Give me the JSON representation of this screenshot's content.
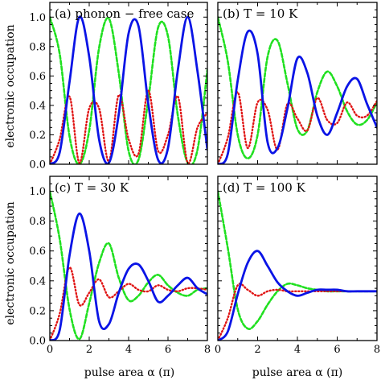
{
  "chart_data": {
    "type": "line",
    "layout": "2x2 grid of subplots with shared axes",
    "xlabel": "pulse area α (π)",
    "ylabel": "electronic occupation",
    "xlim": [
      0,
      8
    ],
    "ylim": [
      0,
      1.1
    ],
    "xticks": [
      0,
      2,
      4,
      6,
      8
    ],
    "yticks": [
      0.0,
      0.2,
      0.4,
      0.6,
      0.8,
      1.0
    ],
    "ytick_labels": [
      "0.0",
      "0.2",
      "0.4",
      "0.6",
      "0.8",
      "1.0"
    ],
    "grid": false,
    "series_styles": [
      {
        "color": "#0a14e6",
        "style": "solid",
        "width": 2.8
      },
      {
        "color": "#20e020",
        "style": "dashed",
        "width": 2.6
      },
      {
        "color": "#e01414",
        "style": "dotted",
        "width": 2.4
      }
    ],
    "panels": [
      {
        "title": "(a) phonon − free case",
        "series": [
          {
            "x": [
              0,
              0.5,
              1.0,
              1.5,
              2.0,
              2.5,
              3.0,
              3.5,
              4.0,
              4.5,
              5.0,
              5.5,
              6.0,
              6.5,
              7.0,
              7.5,
              8.0
            ],
            "y": [
              0.0,
              0.08,
              0.56,
              1.0,
              0.73,
              0.17,
              0.01,
              0.34,
              0.89,
              0.94,
              0.41,
              0.03,
              0.11,
              0.64,
              1.0,
              0.63,
              0.1
            ]
          },
          {
            "x": [
              0,
              0.5,
              1.0,
              1.5,
              2.0,
              2.5,
              3.0,
              3.5,
              4.0,
              4.5,
              5.0,
              5.5,
              6.0,
              6.5,
              7.0,
              7.5,
              8.0
            ],
            "y": [
              1.0,
              0.75,
              0.19,
              0.0,
              0.23,
              0.79,
              0.99,
              0.62,
              0.09,
              0.03,
              0.44,
              0.93,
              0.87,
              0.33,
              0.01,
              0.1,
              0.64
            ]
          },
          {
            "x": [
              0,
              0.5,
              1.0,
              1.5,
              2.0,
              2.5,
              3.0,
              3.5,
              4.0,
              4.5,
              5.0,
              5.5,
              6.0,
              6.5,
              7.0,
              7.5,
              8.0
            ],
            "y": [
              0.0,
              0.17,
              0.46,
              0.01,
              0.38,
              0.38,
              0.02,
              0.47,
              0.17,
              0.07,
              0.5,
              0.09,
              0.2,
              0.46,
              0.01,
              0.25,
              0.35
            ]
          }
        ]
      },
      {
        "title": "(b) T = 10 K",
        "series": [
          {
            "x": [
              0,
              0.5,
              1.0,
              1.5,
              2.0,
              2.5,
              3.0,
              3.5,
              4.0,
              4.5,
              5.0,
              5.5,
              6.0,
              6.5,
              7.0,
              7.5,
              8.0
            ],
            "y": [
              0.0,
              0.07,
              0.57,
              0.9,
              0.75,
              0.15,
              0.11,
              0.38,
              0.72,
              0.62,
              0.33,
              0.2,
              0.35,
              0.53,
              0.58,
              0.41,
              0.25
            ]
          },
          {
            "x": [
              0,
              0.5,
              1.0,
              1.5,
              2.0,
              2.5,
              3.0,
              3.5,
              4.0,
              4.5,
              5.0,
              5.5,
              6.0,
              6.5,
              7.0,
              7.5,
              8.0
            ],
            "y": [
              1.0,
              0.7,
              0.2,
              0.04,
              0.2,
              0.73,
              0.84,
              0.55,
              0.24,
              0.23,
              0.49,
              0.63,
              0.53,
              0.36,
              0.27,
              0.3,
              0.42
            ]
          },
          {
            "x": [
              0,
              0.5,
              1.0,
              1.5,
              2.0,
              2.5,
              3.0,
              3.5,
              4.0,
              4.5,
              5.0,
              5.5,
              6.0,
              6.5,
              7.0,
              7.5,
              8.0
            ],
            "y": [
              0.0,
              0.18,
              0.49,
              0.11,
              0.42,
              0.37,
              0.1,
              0.41,
              0.31,
              0.23,
              0.45,
              0.3,
              0.28,
              0.42,
              0.33,
              0.33,
              0.43
            ]
          }
        ]
      },
      {
        "title": "(c) T = 30 K",
        "series": [
          {
            "x": [
              0,
              0.5,
              1.0,
              1.5,
              2.0,
              2.5,
              3.0,
              3.5,
              4.0,
              4.5,
              5.0,
              5.5,
              6.0,
              6.5,
              7.0,
              7.5,
              8.0
            ],
            "y": [
              0.0,
              0.07,
              0.57,
              0.85,
              0.6,
              0.13,
              0.11,
              0.32,
              0.48,
              0.51,
              0.4,
              0.26,
              0.3,
              0.37,
              0.42,
              0.35,
              0.31
            ]
          },
          {
            "x": [
              0,
              0.5,
              1.0,
              1.5,
              2.0,
              2.5,
              3.0,
              3.5,
              4.0,
              4.5,
              5.0,
              5.5,
              6.0,
              6.5,
              7.0,
              7.5,
              8.0
            ],
            "y": [
              1.0,
              0.68,
              0.21,
              0.01,
              0.25,
              0.52,
              0.65,
              0.42,
              0.27,
              0.3,
              0.39,
              0.44,
              0.37,
              0.32,
              0.3,
              0.34,
              0.35
            ]
          },
          {
            "x": [
              0,
              0.5,
              1.0,
              1.5,
              2.0,
              2.5,
              3.0,
              3.5,
              4.0,
              4.5,
              5.0,
              5.5,
              6.0,
              6.5,
              7.0,
              7.5,
              8.0
            ],
            "y": [
              0.0,
              0.18,
              0.49,
              0.24,
              0.32,
              0.41,
              0.29,
              0.33,
              0.38,
              0.34,
              0.33,
              0.37,
              0.34,
              0.33,
              0.35,
              0.35,
              0.34
            ]
          }
        ]
      },
      {
        "title": "(d) T = 100 K",
        "series": [
          {
            "x": [
              0,
              0.5,
              1.0,
              1.5,
              2.0,
              2.5,
              3.0,
              3.5,
              4.0,
              4.5,
              5.0,
              5.5,
              6.0,
              6.5,
              7.0,
              7.5,
              8.0
            ],
            "y": [
              0.0,
              0.06,
              0.31,
              0.52,
              0.6,
              0.5,
              0.39,
              0.33,
              0.3,
              0.32,
              0.34,
              0.34,
              0.34,
              0.33,
              0.33,
              0.33,
              0.33
            ]
          },
          {
            "x": [
              0,
              0.5,
              1.0,
              1.5,
              2.0,
              2.5,
              3.0,
              3.5,
              4.0,
              4.5,
              5.0,
              5.5,
              6.0,
              6.5,
              7.0,
              7.5,
              8.0
            ],
            "y": [
              1.0,
              0.62,
              0.21,
              0.08,
              0.13,
              0.24,
              0.33,
              0.38,
              0.37,
              0.35,
              0.34,
              0.33,
              0.33,
              0.33,
              0.33,
              0.33,
              0.33
            ]
          },
          {
            "x": [
              0,
              0.5,
              1.0,
              1.5,
              2.0,
              2.5,
              3.0,
              3.5,
              4.0,
              4.5,
              5.0,
              5.5,
              6.0,
              6.5,
              7.0,
              7.5,
              8.0
            ],
            "y": [
              0.0,
              0.15,
              0.37,
              0.34,
              0.3,
              0.33,
              0.34,
              0.33,
              0.33,
              0.33,
              0.33,
              0.33,
              0.33,
              0.33,
              0.33,
              0.33,
              0.33
            ]
          }
        ]
      }
    ]
  }
}
